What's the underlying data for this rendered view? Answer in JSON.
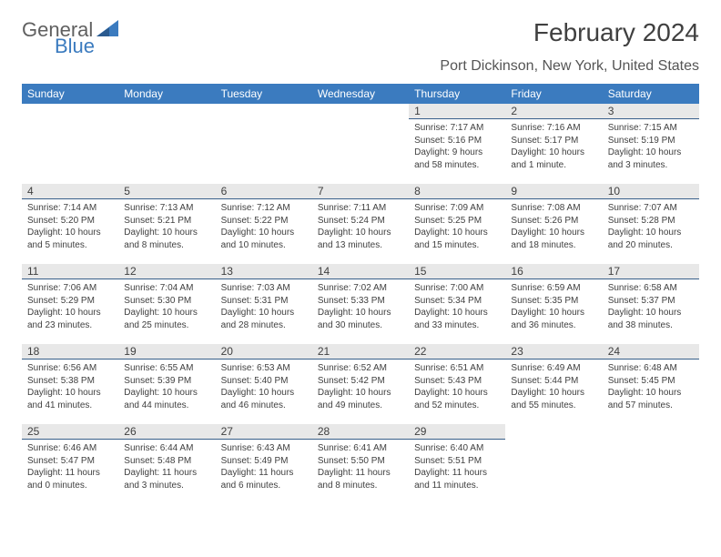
{
  "logo": {
    "text_gray": "General",
    "text_blue": "Blue"
  },
  "title": "February 2024",
  "location": "Port Dickinson, New York, United States",
  "header_bg": "#3b7bbf",
  "header_fg": "#ffffff",
  "daynum_bg": "#e8e8e8",
  "daynum_border": "#385f8a",
  "weekdays": [
    "Sunday",
    "Monday",
    "Tuesday",
    "Wednesday",
    "Thursday",
    "Friday",
    "Saturday"
  ],
  "weeks": [
    [
      {
        "day": "",
        "sunrise": "",
        "sunset": "",
        "daylight": ""
      },
      {
        "day": "",
        "sunrise": "",
        "sunset": "",
        "daylight": ""
      },
      {
        "day": "",
        "sunrise": "",
        "sunset": "",
        "daylight": ""
      },
      {
        "day": "",
        "sunrise": "",
        "sunset": "",
        "daylight": ""
      },
      {
        "day": "1",
        "sunrise": "Sunrise: 7:17 AM",
        "sunset": "Sunset: 5:16 PM",
        "daylight": "Daylight: 9 hours and 58 minutes."
      },
      {
        "day": "2",
        "sunrise": "Sunrise: 7:16 AM",
        "sunset": "Sunset: 5:17 PM",
        "daylight": "Daylight: 10 hours and 1 minute."
      },
      {
        "day": "3",
        "sunrise": "Sunrise: 7:15 AM",
        "sunset": "Sunset: 5:19 PM",
        "daylight": "Daylight: 10 hours and 3 minutes."
      }
    ],
    [
      {
        "day": "4",
        "sunrise": "Sunrise: 7:14 AM",
        "sunset": "Sunset: 5:20 PM",
        "daylight": "Daylight: 10 hours and 5 minutes."
      },
      {
        "day": "5",
        "sunrise": "Sunrise: 7:13 AM",
        "sunset": "Sunset: 5:21 PM",
        "daylight": "Daylight: 10 hours and 8 minutes."
      },
      {
        "day": "6",
        "sunrise": "Sunrise: 7:12 AM",
        "sunset": "Sunset: 5:22 PM",
        "daylight": "Daylight: 10 hours and 10 minutes."
      },
      {
        "day": "7",
        "sunrise": "Sunrise: 7:11 AM",
        "sunset": "Sunset: 5:24 PM",
        "daylight": "Daylight: 10 hours and 13 minutes."
      },
      {
        "day": "8",
        "sunrise": "Sunrise: 7:09 AM",
        "sunset": "Sunset: 5:25 PM",
        "daylight": "Daylight: 10 hours and 15 minutes."
      },
      {
        "day": "9",
        "sunrise": "Sunrise: 7:08 AM",
        "sunset": "Sunset: 5:26 PM",
        "daylight": "Daylight: 10 hours and 18 minutes."
      },
      {
        "day": "10",
        "sunrise": "Sunrise: 7:07 AM",
        "sunset": "Sunset: 5:28 PM",
        "daylight": "Daylight: 10 hours and 20 minutes."
      }
    ],
    [
      {
        "day": "11",
        "sunrise": "Sunrise: 7:06 AM",
        "sunset": "Sunset: 5:29 PM",
        "daylight": "Daylight: 10 hours and 23 minutes."
      },
      {
        "day": "12",
        "sunrise": "Sunrise: 7:04 AM",
        "sunset": "Sunset: 5:30 PM",
        "daylight": "Daylight: 10 hours and 25 minutes."
      },
      {
        "day": "13",
        "sunrise": "Sunrise: 7:03 AM",
        "sunset": "Sunset: 5:31 PM",
        "daylight": "Daylight: 10 hours and 28 minutes."
      },
      {
        "day": "14",
        "sunrise": "Sunrise: 7:02 AM",
        "sunset": "Sunset: 5:33 PM",
        "daylight": "Daylight: 10 hours and 30 minutes."
      },
      {
        "day": "15",
        "sunrise": "Sunrise: 7:00 AM",
        "sunset": "Sunset: 5:34 PM",
        "daylight": "Daylight: 10 hours and 33 minutes."
      },
      {
        "day": "16",
        "sunrise": "Sunrise: 6:59 AM",
        "sunset": "Sunset: 5:35 PM",
        "daylight": "Daylight: 10 hours and 36 minutes."
      },
      {
        "day": "17",
        "sunrise": "Sunrise: 6:58 AM",
        "sunset": "Sunset: 5:37 PM",
        "daylight": "Daylight: 10 hours and 38 minutes."
      }
    ],
    [
      {
        "day": "18",
        "sunrise": "Sunrise: 6:56 AM",
        "sunset": "Sunset: 5:38 PM",
        "daylight": "Daylight: 10 hours and 41 minutes."
      },
      {
        "day": "19",
        "sunrise": "Sunrise: 6:55 AM",
        "sunset": "Sunset: 5:39 PM",
        "daylight": "Daylight: 10 hours and 44 minutes."
      },
      {
        "day": "20",
        "sunrise": "Sunrise: 6:53 AM",
        "sunset": "Sunset: 5:40 PM",
        "daylight": "Daylight: 10 hours and 46 minutes."
      },
      {
        "day": "21",
        "sunrise": "Sunrise: 6:52 AM",
        "sunset": "Sunset: 5:42 PM",
        "daylight": "Daylight: 10 hours and 49 minutes."
      },
      {
        "day": "22",
        "sunrise": "Sunrise: 6:51 AM",
        "sunset": "Sunset: 5:43 PM",
        "daylight": "Daylight: 10 hours and 52 minutes."
      },
      {
        "day": "23",
        "sunrise": "Sunrise: 6:49 AM",
        "sunset": "Sunset: 5:44 PM",
        "daylight": "Daylight: 10 hours and 55 minutes."
      },
      {
        "day": "24",
        "sunrise": "Sunrise: 6:48 AM",
        "sunset": "Sunset: 5:45 PM",
        "daylight": "Daylight: 10 hours and 57 minutes."
      }
    ],
    [
      {
        "day": "25",
        "sunrise": "Sunrise: 6:46 AM",
        "sunset": "Sunset: 5:47 PM",
        "daylight": "Daylight: 11 hours and 0 minutes."
      },
      {
        "day": "26",
        "sunrise": "Sunrise: 6:44 AM",
        "sunset": "Sunset: 5:48 PM",
        "daylight": "Daylight: 11 hours and 3 minutes."
      },
      {
        "day": "27",
        "sunrise": "Sunrise: 6:43 AM",
        "sunset": "Sunset: 5:49 PM",
        "daylight": "Daylight: 11 hours and 6 minutes."
      },
      {
        "day": "28",
        "sunrise": "Sunrise: 6:41 AM",
        "sunset": "Sunset: 5:50 PM",
        "daylight": "Daylight: 11 hours and 8 minutes."
      },
      {
        "day": "29",
        "sunrise": "Sunrise: 6:40 AM",
        "sunset": "Sunset: 5:51 PM",
        "daylight": "Daylight: 11 hours and 11 minutes."
      },
      {
        "day": "",
        "sunrise": "",
        "sunset": "",
        "daylight": ""
      },
      {
        "day": "",
        "sunrise": "",
        "sunset": "",
        "daylight": ""
      }
    ]
  ]
}
